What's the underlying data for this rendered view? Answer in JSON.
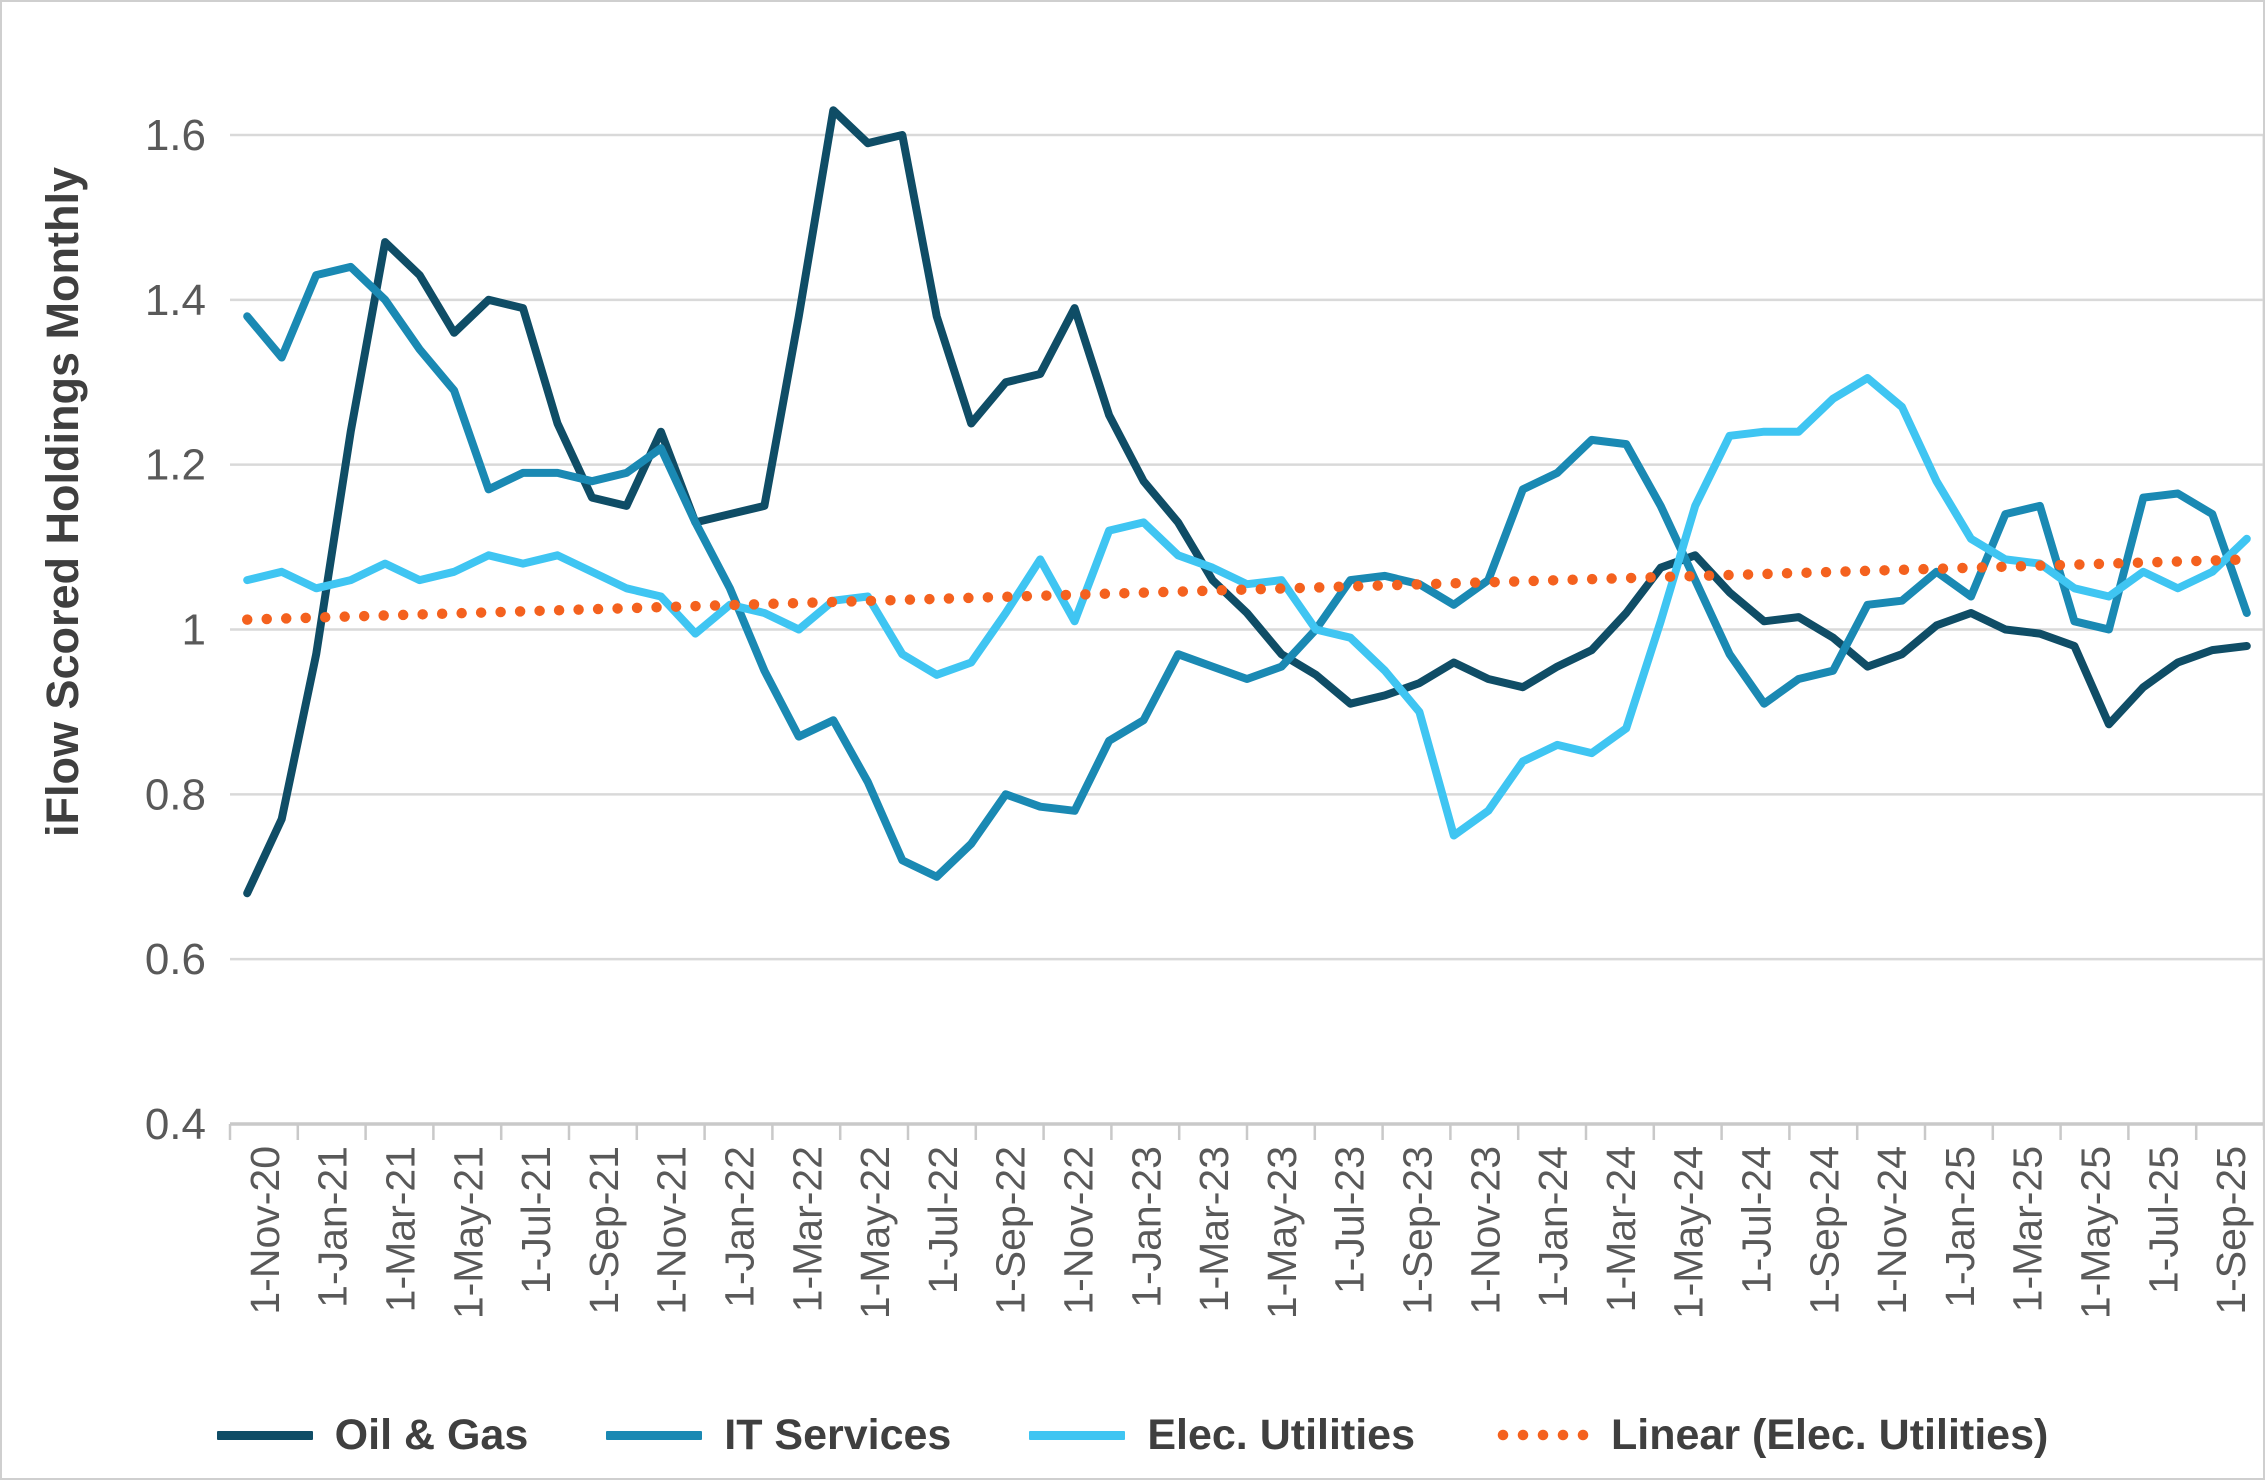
{
  "frame": {
    "background": "#ffffff",
    "border_color": "#cfcfcf"
  },
  "chart_data": {
    "type": "line",
    "title": "",
    "xlabel": "",
    "ylabel": "iFlow Scored Holdings Monthly",
    "ylim": [
      0.4,
      1.6
    ],
    "y_ticks": [
      "0.4",
      "0.6",
      "0.8",
      "1",
      "1.2",
      "1.4",
      "1.6"
    ],
    "y_tick_values": [
      0.4,
      0.6,
      0.8,
      1.0,
      1.2,
      1.4,
      1.6
    ],
    "grid": "horizontal-only",
    "legend_position": "bottom",
    "n_points": 59,
    "x_start": "Nov-2020",
    "x_end": "Sep-2025",
    "x_tick_interval_months": 2,
    "x_tick_labels": [
      "1-Nov-20",
      "1-Jan-21",
      "1-Mar-21",
      "1-May-21",
      "1-Jul-21",
      "1-Sep-21",
      "1-Nov-21",
      "1-Jan-22",
      "1-Mar-22",
      "1-May-22",
      "1-Jul-22",
      "1-Sep-22",
      "1-Nov-22",
      "1-Jan-23",
      "1-Mar-23",
      "1-May-23",
      "1-Jul-23",
      "1-Sep-23",
      "1-Nov-23",
      "1-Jan-24",
      "1-Mar-24",
      "1-May-24",
      "1-Jul-24",
      "1-Sep-24",
      "1-Nov-24",
      "1-Jan-25",
      "1-Mar-25",
      "1-May-25",
      "1-Jul-25",
      "1-Sep-25"
    ],
    "series": [
      {
        "name": "Oil & Gas",
        "color": "#0f4d66",
        "style": "solid",
        "values": [
          0.68,
          0.77,
          0.97,
          1.24,
          1.47,
          1.43,
          1.36,
          1.4,
          1.39,
          1.25,
          1.16,
          1.15,
          1.24,
          1.13,
          1.14,
          1.15,
          1.38,
          1.63,
          1.59,
          1.6,
          1.38,
          1.25,
          1.3,
          1.31,
          1.39,
          1.26,
          1.18,
          1.13,
          1.06,
          1.02,
          0.97,
          0.945,
          0.91,
          0.92,
          0.935,
          0.96,
          0.94,
          0.93,
          0.955,
          0.975,
          1.02,
          1.075,
          1.09,
          1.045,
          1.01,
          1.015,
          0.99,
          0.955,
          0.97,
          1.005,
          1.02,
          1.0,
          0.995,
          0.98,
          0.885,
          0.93,
          0.96,
          0.975,
          0.98
        ]
      },
      {
        "name": "IT Services",
        "color": "#1a89b3",
        "style": "solid",
        "values": [
          1.38,
          1.33,
          1.43,
          1.44,
          1.4,
          1.34,
          1.29,
          1.17,
          1.19,
          1.19,
          1.18,
          1.19,
          1.22,
          1.13,
          1.05,
          0.95,
          0.87,
          0.89,
          0.815,
          0.72,
          0.7,
          0.74,
          0.8,
          0.785,
          0.78,
          0.865,
          0.89,
          0.97,
          0.955,
          0.94,
          0.955,
          1.0,
          1.06,
          1.065,
          1.055,
          1.03,
          1.06,
          1.17,
          1.19,
          1.23,
          1.225,
          1.15,
          1.06,
          0.97,
          0.91,
          0.94,
          0.95,
          1.03,
          1.035,
          1.07,
          1.04,
          1.14,
          1.15,
          1.01,
          1.0,
          1.16,
          1.165,
          1.14,
          1.02
        ]
      },
      {
        "name": "Elec. Utilities",
        "color": "#3fc5f2",
        "style": "solid",
        "values": [
          1.06,
          1.07,
          1.05,
          1.06,
          1.08,
          1.06,
          1.07,
          1.09,
          1.08,
          1.09,
          1.07,
          1.05,
          1.04,
          0.995,
          1.03,
          1.02,
          1.0,
          1.035,
          1.04,
          0.97,
          0.945,
          0.96,
          1.02,
          1.085,
          1.01,
          1.12,
          1.13,
          1.09,
          1.075,
          1.055,
          1.06,
          1.0,
          0.99,
          0.95,
          0.9,
          0.75,
          0.78,
          0.84,
          0.86,
          0.85,
          0.88,
          1.01,
          1.15,
          1.235,
          1.24,
          1.24,
          1.28,
          1.305,
          1.27,
          1.18,
          1.11,
          1.085,
          1.08,
          1.05,
          1.04,
          1.07,
          1.05,
          1.07,
          1.11
        ]
      },
      {
        "name": "Linear (Elec. Utilities)",
        "color": "#f4611e",
        "style": "dotted",
        "trend_from": 1.012,
        "trend_to": 1.085
      }
    ]
  },
  "axes_style": {
    "gridline_color": "#d9d9d9",
    "axis_line_color": "#c9c9c9",
    "tick_label_color": "#595959",
    "right_border_color": "#d9d9d9"
  }
}
